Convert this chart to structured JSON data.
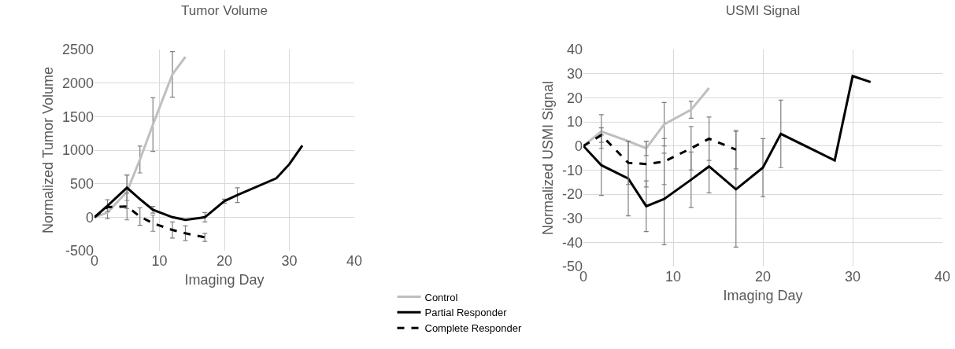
{
  "chart_data": [
    {
      "type": "line",
      "title": "Tumor Volume",
      "xlabel": "Imaging Day",
      "ylabel": "Normalized Tumor Volume",
      "xlim": [
        0,
        40
      ],
      "xticks": [
        0,
        10,
        20,
        30,
        40
      ],
      "ylim": [
        -500,
        2500
      ],
      "yticks": [
        -500,
        0,
        500,
        1000,
        1500,
        2000,
        2500
      ],
      "grid": true,
      "legend": "bottom",
      "marker": "none",
      "series": [
        {
          "name": "Control",
          "color": "#bfbfbf",
          "line_style": "solid",
          "x": [
            0,
            2,
            5,
            7,
            9,
            12,
            14
          ],
          "values": [
            0,
            70,
            380,
            860,
            1380,
            2130,
            2390
          ],
          "errors": [
            null,
            90,
            250,
            200,
            400,
            340,
            null
          ]
        },
        {
          "name": "Partial Responder",
          "color": "#000000",
          "line_style": "solid",
          "x": [
            0,
            2,
            5,
            7,
            9,
            12,
            14,
            17,
            20,
            22,
            28,
            30,
            32
          ],
          "values": [
            0,
            170,
            440,
            270,
            110,
            0,
            -40,
            0,
            240,
            330,
            580,
            790,
            1070
          ],
          "errors": [
            null,
            90,
            190,
            null,
            50,
            null,
            null,
            70,
            30,
            110,
            null,
            null,
            null
          ]
        },
        {
          "name": "Complete Responder",
          "color": "#000000",
          "line_style": "dashed",
          "x": [
            0,
            2,
            5,
            7,
            9,
            12,
            14,
            17
          ],
          "values": [
            0,
            150,
            160,
            10,
            -90,
            -190,
            -240,
            -300
          ],
          "errors": [
            null,
            null,
            200,
            130,
            120,
            120,
            110,
            60
          ]
        }
      ]
    },
    {
      "type": "line",
      "title": "USMI Signal",
      "xlabel": "Imaging Day",
      "ylabel": "Normalized USMI Signal",
      "xlim": [
        0,
        40
      ],
      "xticks": [
        0,
        10,
        20,
        30,
        40
      ],
      "ylim": [
        -50,
        40
      ],
      "yticks": [
        -50,
        -40,
        -30,
        -20,
        -10,
        0,
        10,
        20,
        30,
        40
      ],
      "grid": true,
      "marker": "none",
      "series": [
        {
          "color": "#bfbfbf",
          "line_style": "solid",
          "x": [
            0,
            2,
            5,
            7,
            9,
            12,
            14
          ],
          "values": [
            0,
            6,
            2,
            -1,
            9,
            15,
            24
          ],
          "errors": [
            null,
            7,
            null,
            3,
            9,
            3.5,
            null
          ]
        },
        {
          "color": "#000000",
          "line_style": "solid",
          "x": [
            0,
            2,
            5,
            7,
            9,
            12,
            14,
            17,
            20,
            22,
            28,
            30,
            32
          ],
          "values": [
            0,
            -8,
            -13.5,
            -25,
            -22,
            -14,
            -8.5,
            -18,
            -9,
            5,
            -6,
            29,
            26.5
          ],
          "errors": [
            null,
            12.5,
            15.5,
            10.5,
            19,
            11.5,
            11,
            24,
            12,
            14,
            null,
            null,
            null
          ]
        },
        {
          "color": "#000000",
          "line_style": "dashed",
          "x": [
            0,
            2,
            5,
            7,
            9,
            12,
            14,
            17
          ],
          "values": [
            0,
            4.5,
            -7,
            -7.5,
            -6.5,
            -1,
            3,
            -1.5
          ],
          "errors": [
            null,
            3,
            9,
            9.5,
            9.5,
            9,
            9,
            8
          ]
        }
      ]
    }
  ]
}
